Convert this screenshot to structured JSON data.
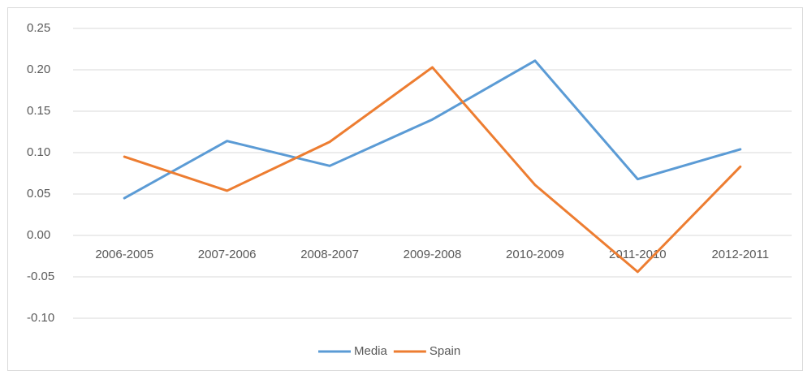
{
  "chart_data": {
    "type": "line",
    "categories": [
      "2006-2005",
      "2007-2006",
      "2008-2007",
      "2009-2008",
      "2010-2009",
      "2011-2010",
      "2012-2011"
    ],
    "series": [
      {
        "name": "Media",
        "color": "#5b9bd5",
        "values": [
          0.045,
          0.114,
          0.084,
          0.14,
          0.211,
          0.068,
          0.104
        ]
      },
      {
        "name": "Spain",
        "color": "#ed7d31",
        "values": [
          0.095,
          0.054,
          0.113,
          0.203,
          0.061,
          -0.044,
          0.083
        ]
      }
    ],
    "ylim": [
      -0.1,
      0.25
    ],
    "yticks": [
      {
        "value": -0.1,
        "label": "-0.10"
      },
      -0.05,
      {
        "value": 0,
        "label": "0.00"
      },
      0.05,
      {
        "value": 0.1,
        "label": "0.10"
      },
      0.15,
      {
        "value": 0.2,
        "label": "0.20"
      },
      0.25
    ],
    "grid": true,
    "legend": "bottom"
  }
}
